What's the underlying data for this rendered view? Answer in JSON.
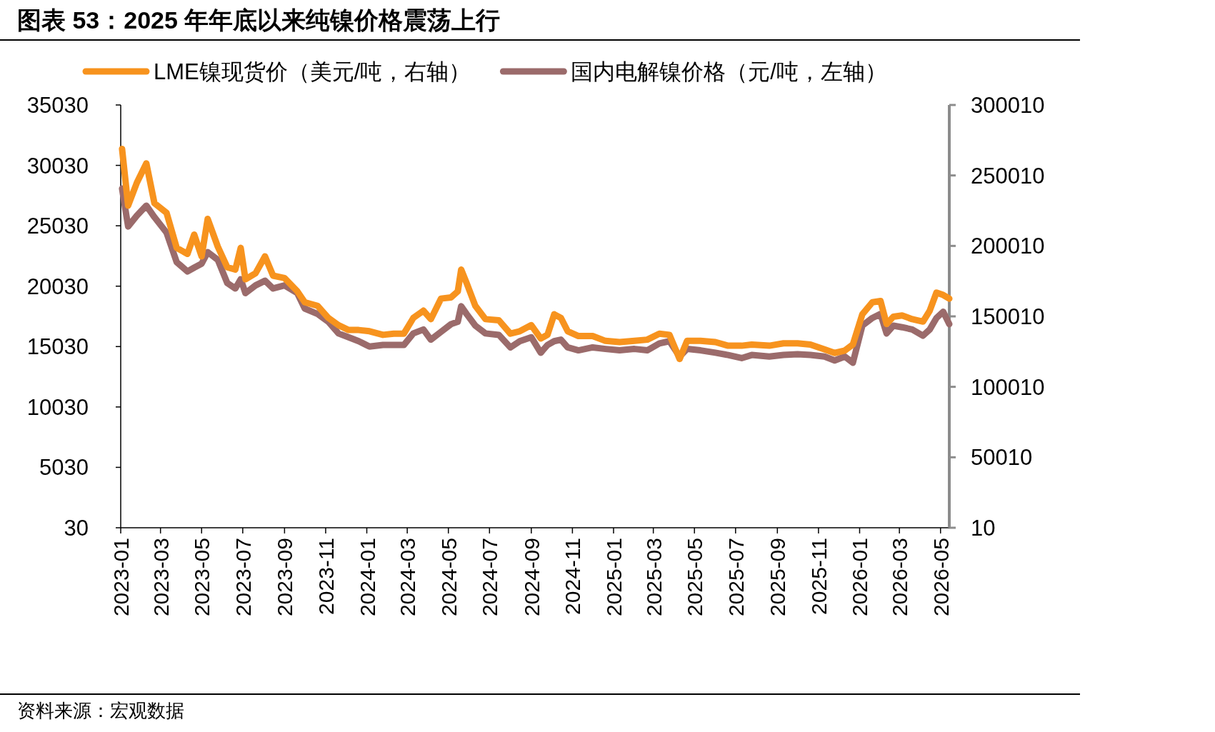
{
  "chart_data": {
    "type": "line",
    "title": "图表 53：2025 年年底以来纯镍价格震荡上行",
    "annotations": [
      "资料来源：宏观数据"
    ],
    "legend": "top",
    "grid": false,
    "line_style": "solid",
    "xlim": [
      "2023-01-01",
      "2026-05-14"
    ],
    "xticks": [
      {
        "value": "2023-01-01",
        "label": "2023-01"
      },
      {
        "value": "2023-03-01",
        "label": "2023-03"
      },
      {
        "value": "2023-05-01",
        "label": "2023-05"
      },
      {
        "value": "2023-07-01",
        "label": "2023-07"
      },
      {
        "value": "2023-09-01",
        "label": "2023-09"
      },
      {
        "value": "2023-11-01",
        "label": "2023-11"
      },
      {
        "value": "2024-01-01",
        "label": "2024-01"
      },
      {
        "value": "2024-03-01",
        "label": "2024-03"
      },
      {
        "value": "2024-05-01",
        "label": "2024-05"
      },
      {
        "value": "2024-07-01",
        "label": "2024-07"
      },
      {
        "value": "2024-09-01",
        "label": "2024-09"
      },
      {
        "value": "2024-11-01",
        "label": "2024-11"
      },
      {
        "value": "2025-01-01",
        "label": "2025-01"
      },
      {
        "value": "2025-03-01",
        "label": "2025-03"
      },
      {
        "value": "2025-05-01",
        "label": "2025-05"
      },
      {
        "value": "2025-07-01",
        "label": "2025-07"
      },
      {
        "value": "2025-09-01",
        "label": "2025-09"
      },
      {
        "value": "2025-11-01",
        "label": "2025-11"
      },
      {
        "value": "2026-01-01",
        "label": "2026-01"
      },
      {
        "value": "2026-03-01",
        "label": "2026-03"
      },
      {
        "value": "2026-05-01",
        "label": "2026-05"
      }
    ],
    "ylim": [
      30,
      35030
    ],
    "yticks": [
      30,
      5030,
      10030,
      15030,
      20030,
      25030,
      30030,
      35030
    ],
    "y2lim": [
      10,
      300010
    ],
    "y2ticks": [
      10,
      50010,
      100010,
      150010,
      200010,
      250010,
      300010
    ],
    "x": [
      "2023-01-03",
      "2023-01-12",
      "2023-01-25",
      "2023-02-08",
      "2023-02-20",
      "2023-03-10",
      "2023-03-25",
      "2023-04-10",
      "2023-04-20",
      "2023-05-01",
      "2023-05-10",
      "2023-05-25",
      "2023-06-08",
      "2023-06-20",
      "2023-06-28",
      "2023-07-05",
      "2023-07-20",
      "2023-08-03",
      "2023-08-15",
      "2023-09-01",
      "2023-09-20",
      "2023-10-01",
      "2023-10-20",
      "2023-11-05",
      "2023-11-20",
      "2023-12-05",
      "2023-12-20",
      "2024-01-05",
      "2024-01-25",
      "2024-02-10",
      "2024-02-25",
      "2024-03-10",
      "2024-03-25",
      "2024-04-05",
      "2024-04-20",
      "2024-05-05",
      "2024-05-15",
      "2024-05-20",
      "2024-05-28",
      "2024-06-10",
      "2024-06-25",
      "2024-07-15",
      "2024-08-01",
      "2024-08-15",
      "2024-09-01",
      "2024-09-15",
      "2024-09-25",
      "2024-10-05",
      "2024-10-15",
      "2024-10-25",
      "2024-11-10",
      "2024-12-01",
      "2024-12-20",
      "2025-01-10",
      "2025-02-01",
      "2025-02-20",
      "2025-03-10",
      "2025-03-25",
      "2025-04-09",
      "2025-04-20",
      "2025-05-10",
      "2025-06-01",
      "2025-06-20",
      "2025-07-10",
      "2025-07-25",
      "2025-08-20",
      "2025-09-10",
      "2025-10-01",
      "2025-10-20",
      "2025-11-10",
      "2025-11-25",
      "2025-12-10",
      "2025-12-22",
      "2026-01-05",
      "2026-01-20",
      "2026-02-01",
      "2026-02-10",
      "2026-02-20",
      "2026-03-05",
      "2026-03-20",
      "2026-04-05",
      "2026-04-15",
      "2026-04-25",
      "2026-05-05",
      "2026-05-14"
    ],
    "series": [
      {
        "name": "LME镍现货价（美元/吨，右轴）",
        "color": "#f7931e",
        "axis": "y",
        "values": [
          31400,
          26700,
          28600,
          30200,
          26900,
          26100,
          23200,
          22700,
          24300,
          22500,
          25600,
          23300,
          21600,
          21400,
          23200,
          20600,
          21100,
          22500,
          20900,
          20700,
          19600,
          18700,
          18400,
          17400,
          16800,
          16400,
          16400,
          16300,
          16000,
          16100,
          16100,
          17400,
          18000,
          17300,
          19000,
          19100,
          19600,
          21400,
          20300,
          18400,
          17300,
          17200,
          16100,
          16300,
          16800,
          15700,
          16000,
          17700,
          17400,
          16300,
          15900,
          15900,
          15500,
          15400,
          15500,
          15600,
          16100,
          16000,
          14000,
          15500,
          15500,
          15400,
          15100,
          15100,
          15200,
          15100,
          15300,
          15300,
          15200,
          14800,
          14500,
          14700,
          15200,
          17700,
          18700,
          18800,
          16900,
          17500,
          17600,
          17300,
          17100,
          18000,
          19500,
          19300,
          19000
        ]
      },
      {
        "name": "国内电解镍价格（元/吨，左轴）",
        "color": "#9b6b6b",
        "axis": "y2",
        "values": [
          240700,
          213800,
          221500,
          228600,
          220400,
          209400,
          188500,
          181900,
          184600,
          187400,
          195600,
          190100,
          173700,
          169800,
          176400,
          166500,
          172000,
          175300,
          169800,
          172000,
          166500,
          155500,
          151700,
          146200,
          137900,
          135200,
          132400,
          128600,
          129700,
          129700,
          129700,
          137900,
          140700,
          133500,
          139000,
          144500,
          146200,
          157200,
          151700,
          143400,
          137900,
          136800,
          128000,
          132400,
          135200,
          124200,
          129700,
          132400,
          133500,
          128000,
          125900,
          128000,
          126900,
          125900,
          126900,
          125900,
          130800,
          132400,
          121500,
          126900,
          125900,
          124200,
          122600,
          120400,
          122600,
          121500,
          122600,
          123100,
          122600,
          121500,
          118700,
          121500,
          117100,
          143400,
          148900,
          151700,
          137900,
          143400,
          142300,
          140700,
          136300,
          140700,
          148900,
          153300,
          144500
        ]
      }
    ]
  }
}
